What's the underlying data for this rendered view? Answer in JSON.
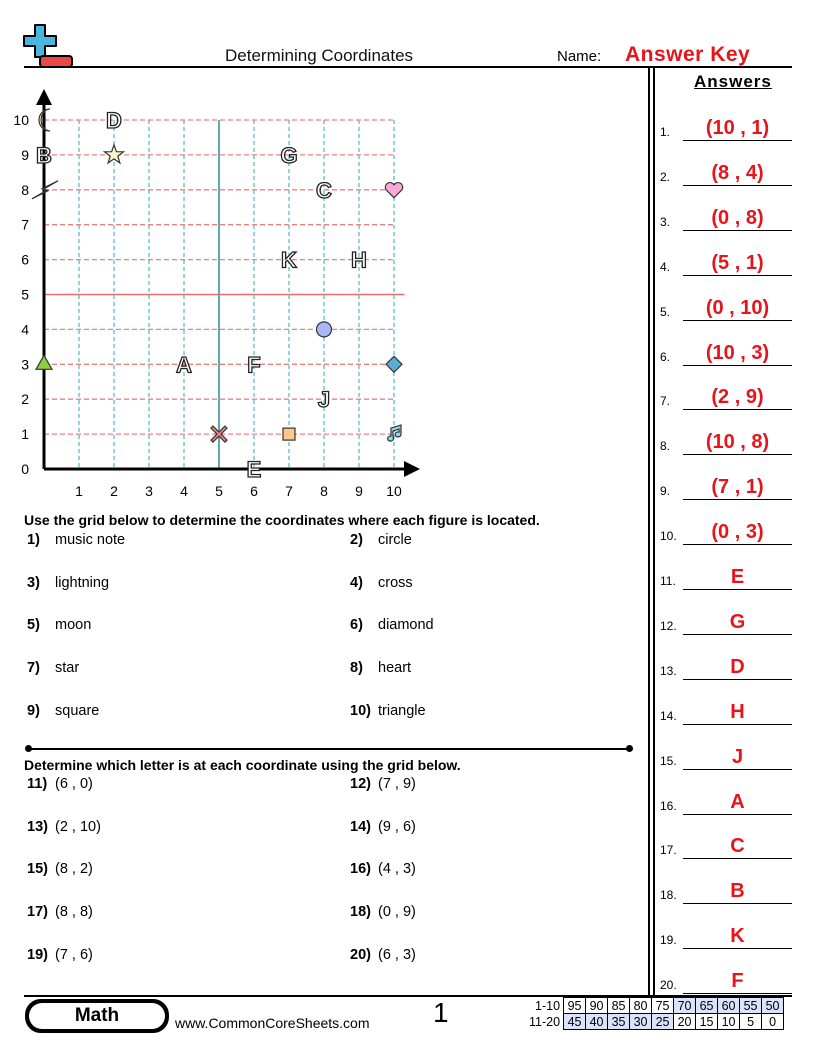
{
  "header": {
    "title": "Determining Coordinates",
    "name_label": "Name:",
    "name_value": "Answer Key"
  },
  "answers": {
    "heading": "Answers",
    "items": [
      {
        "n": "1.",
        "v": "(10 , 1)"
      },
      {
        "n": "2.",
        "v": "(8 , 4)"
      },
      {
        "n": "3.",
        "v": "(0 , 8)"
      },
      {
        "n": "4.",
        "v": "(5 , 1)"
      },
      {
        "n": "5.",
        "v": "(0 , 10)"
      },
      {
        "n": "6.",
        "v": "(10 , 3)"
      },
      {
        "n": "7.",
        "v": "(2 , 9)"
      },
      {
        "n": "8.",
        "v": "(10 , 8)"
      },
      {
        "n": "9.",
        "v": "(7 , 1)"
      },
      {
        "n": "10.",
        "v": "(0 , 3)"
      },
      {
        "n": "11.",
        "v": "E"
      },
      {
        "n": "12.",
        "v": "G"
      },
      {
        "n": "13.",
        "v": "D"
      },
      {
        "n": "14.",
        "v": "H"
      },
      {
        "n": "15.",
        "v": "J"
      },
      {
        "n": "16.",
        "v": "A"
      },
      {
        "n": "17.",
        "v": "C"
      },
      {
        "n": "18.",
        "v": "B"
      },
      {
        "n": "19.",
        "v": "K"
      },
      {
        "n": "20.",
        "v": "F"
      }
    ]
  },
  "grid": {
    "x_ticks": [
      "0",
      "1",
      "2",
      "3",
      "4",
      "5",
      "6",
      "7",
      "8",
      "9",
      "10"
    ],
    "y_ticks": [
      "0",
      "1",
      "2",
      "3",
      "4",
      "5",
      "6",
      "7",
      "8",
      "9",
      "10"
    ],
    "points": [
      {
        "kind": "moon",
        "x": 0,
        "y": 10
      },
      {
        "kind": "letter",
        "label": "B",
        "x": 0,
        "y": 9
      },
      {
        "kind": "lightning",
        "x": 0,
        "y": 8
      },
      {
        "kind": "letter",
        "label": "D",
        "x": 2,
        "y": 10
      },
      {
        "kind": "star",
        "x": 2,
        "y": 9
      },
      {
        "kind": "letter",
        "label": "G",
        "x": 7,
        "y": 9
      },
      {
        "kind": "letter",
        "label": "C",
        "x": 8,
        "y": 8
      },
      {
        "kind": "heart",
        "x": 10,
        "y": 8
      },
      {
        "kind": "letter",
        "label": "K",
        "x": 7,
        "y": 6
      },
      {
        "kind": "letter",
        "label": "H",
        "x": 9,
        "y": 6
      },
      {
        "kind": "circle",
        "x": 8,
        "y": 4
      },
      {
        "kind": "letter",
        "label": "A",
        "x": 4,
        "y": 3
      },
      {
        "kind": "letter",
        "label": "F",
        "x": 6,
        "y": 3
      },
      {
        "kind": "triangle",
        "x": 0,
        "y": 3
      },
      {
        "kind": "diamond",
        "x": 10,
        "y": 3
      },
      {
        "kind": "letter",
        "label": "J",
        "x": 8,
        "y": 2
      },
      {
        "kind": "cross",
        "x": 5,
        "y": 1
      },
      {
        "kind": "square",
        "x": 7,
        "y": 1
      },
      {
        "kind": "music-note",
        "x": 10,
        "y": 1
      },
      {
        "kind": "letter",
        "label": "E",
        "x": 6,
        "y": 0
      }
    ]
  },
  "section1": {
    "instruction": "Use the grid below to determine the coordinates where each figure is located.",
    "questions": [
      {
        "n": "1)",
        "t": "music note"
      },
      {
        "n": "2)",
        "t": "circle"
      },
      {
        "n": "3)",
        "t": "lightning"
      },
      {
        "n": "4)",
        "t": "cross"
      },
      {
        "n": "5)",
        "t": "moon"
      },
      {
        "n": "6)",
        "t": "diamond"
      },
      {
        "n": "7)",
        "t": "star"
      },
      {
        "n": "8)",
        "t": "heart"
      },
      {
        "n": "9)",
        "t": "square"
      },
      {
        "n": "10)",
        "t": "triangle"
      }
    ]
  },
  "section2": {
    "instruction": "Determine which letter is at each coordinate using the grid below.",
    "questions": [
      {
        "n": "11)",
        "t": "(6 , 0)"
      },
      {
        "n": "12)",
        "t": "(7 , 9)"
      },
      {
        "n": "13)",
        "t": "(2 , 10)"
      },
      {
        "n": "14)",
        "t": "(9 , 6)"
      },
      {
        "n": "15)",
        "t": "(8 , 2)"
      },
      {
        "n": "16)",
        "t": "(4 , 3)"
      },
      {
        "n": "17)",
        "t": "(8 , 8)"
      },
      {
        "n": "18)",
        "t": "(0 , 9)"
      },
      {
        "n": "19)",
        "t": "(7 , 6)"
      },
      {
        "n": "20)",
        "t": "(6 , 3)"
      }
    ]
  },
  "footer": {
    "subject": "Math",
    "website": "www.CommonCoreSheets.com",
    "page": "1",
    "score_rows": [
      {
        "label": "1-10",
        "cells": [
          "95",
          "90",
          "85",
          "80",
          "75",
          "70",
          "65",
          "60",
          "55",
          "50"
        ]
      },
      {
        "label": "11-20",
        "cells": [
          "45",
          "40",
          "35",
          "30",
          "25",
          "20",
          "15",
          "10",
          "5",
          "0"
        ]
      }
    ]
  },
  "colors": {
    "answer": "#e8141b",
    "grid_h": "#f08080",
    "grid_v": "#6cc8d0",
    "score_highlight": "#d7e4f9"
  }
}
